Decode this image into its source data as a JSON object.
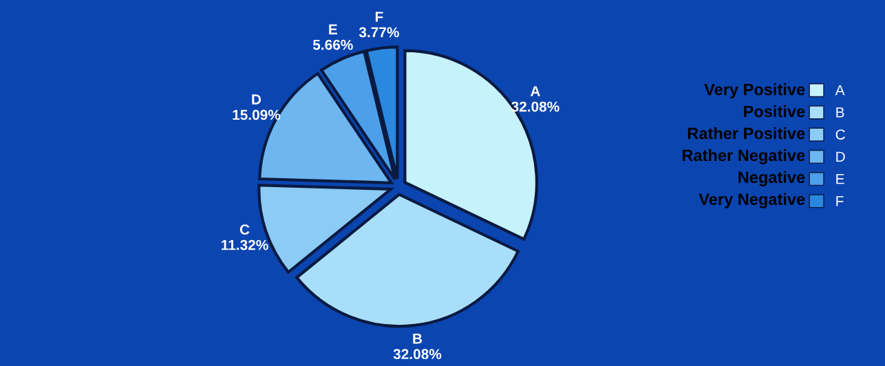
{
  "chart_data": {
    "type": "pie",
    "categories": [
      "A",
      "B",
      "C",
      "D",
      "E",
      "F"
    ],
    "values": [
      32.08,
      32.08,
      11.32,
      15.09,
      5.66,
      3.77
    ],
    "value_labels": [
      "32.08%",
      "32.08%",
      "11.32%",
      "15.09%",
      "5.66%",
      "3.77%"
    ],
    "colors": [
      "#c6f2fb",
      "#a9def8",
      "#8ccbf4",
      "#6db6ef",
      "#4c9fe8",
      "#2a88df"
    ],
    "legend": "right",
    "annotations": [
      "Very Positive",
      "Positive",
      "Rather Positive",
      "Rather Negative",
      "Negative",
      "Very Negative"
    ]
  }
}
